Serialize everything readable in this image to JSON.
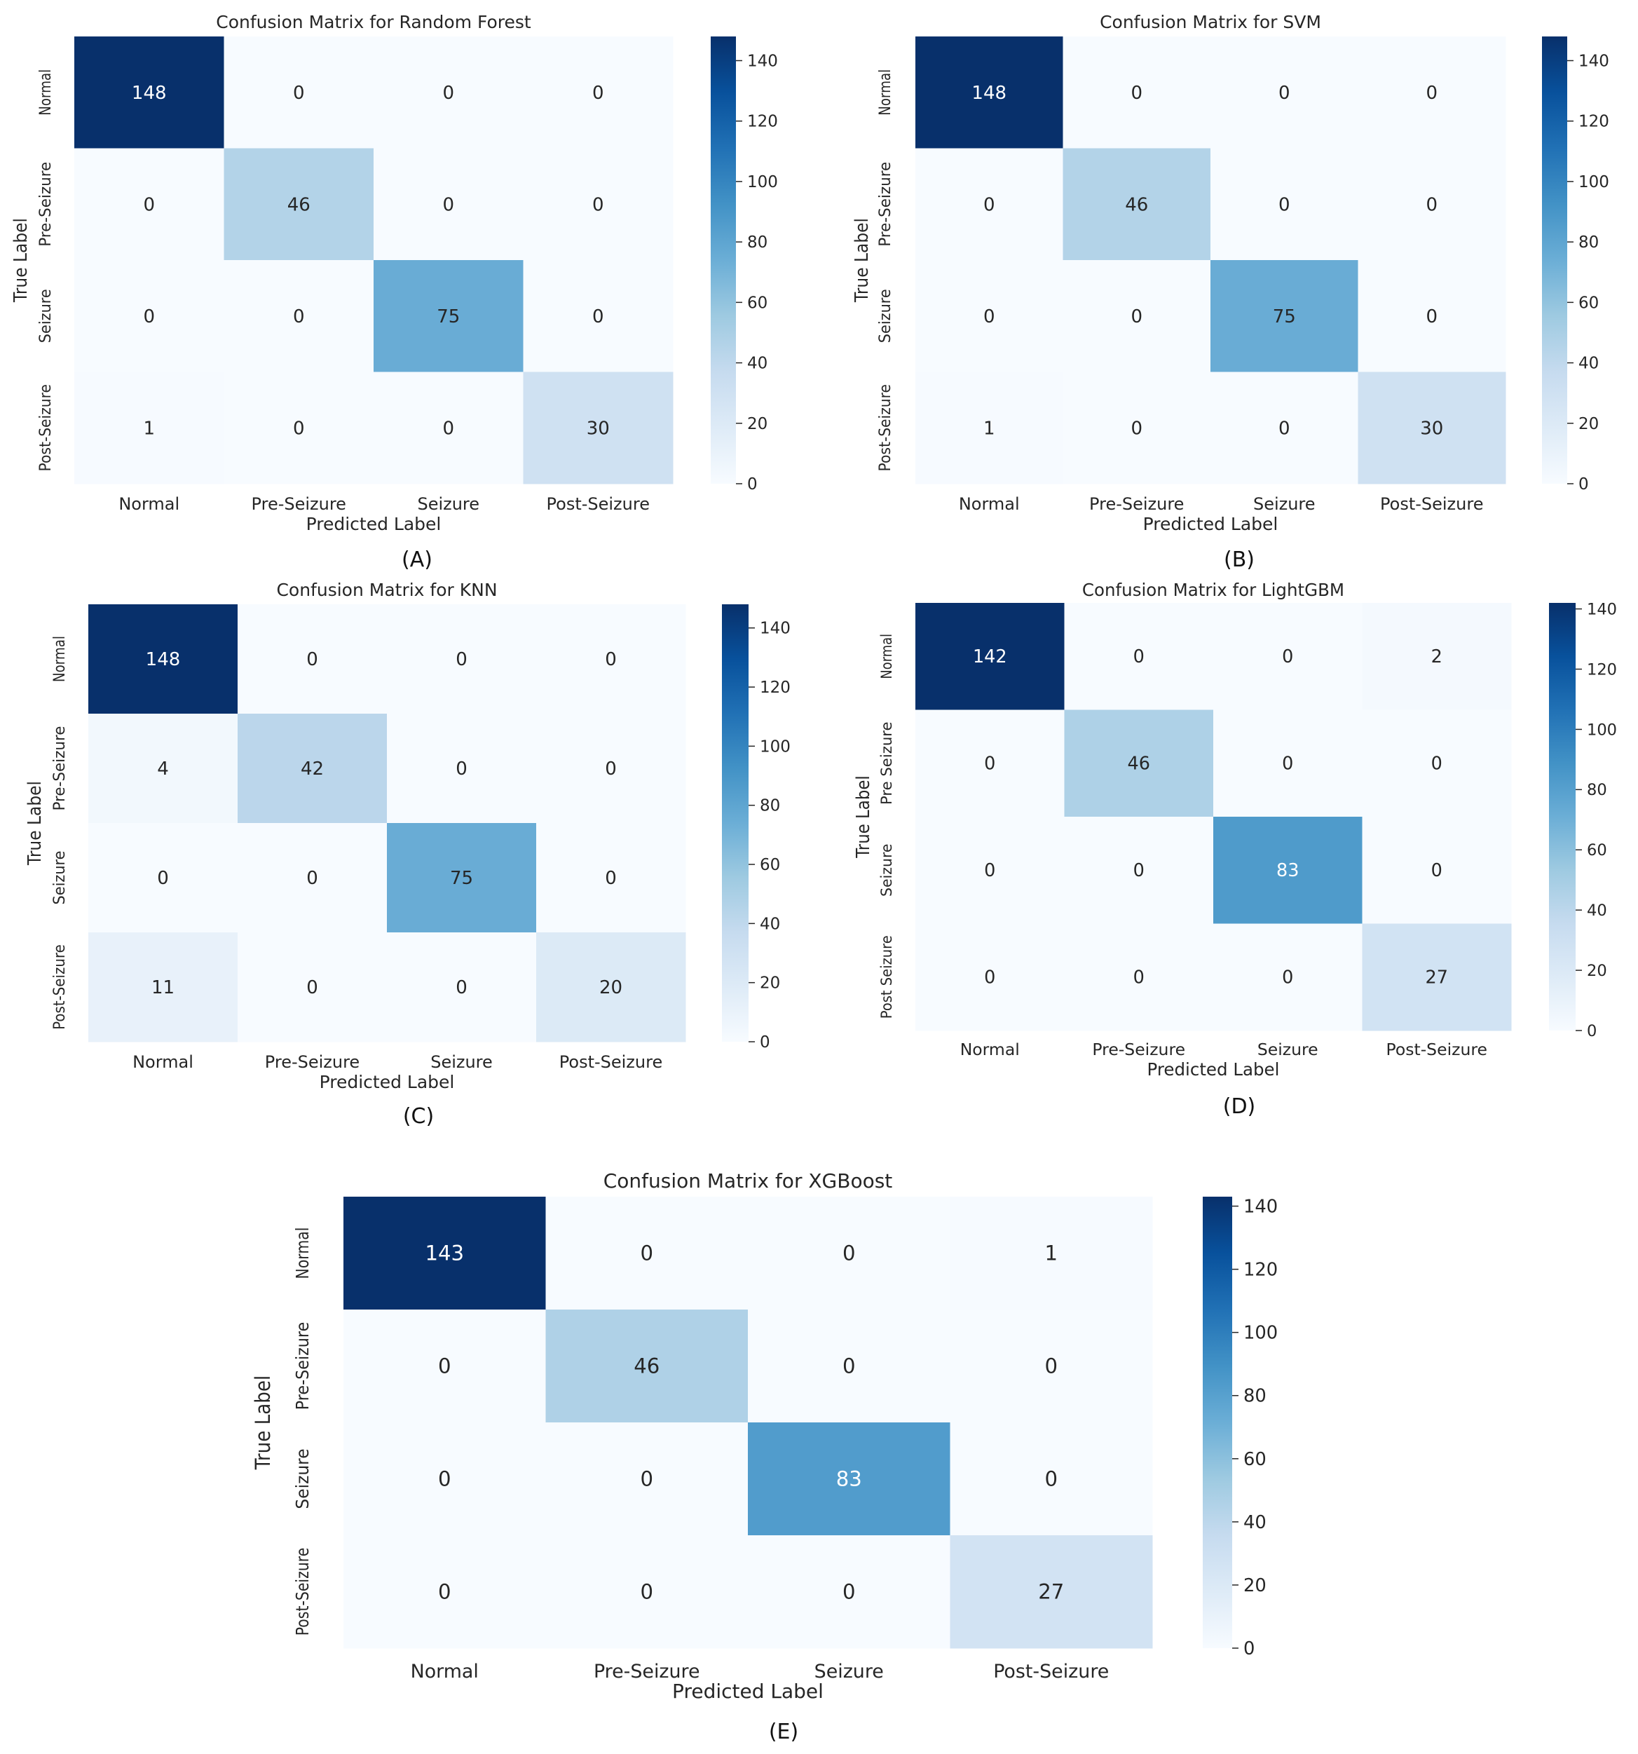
{
  "chart_data": [
    {
      "type": "heatmap",
      "title": "Confusion Matrix for Random Forest",
      "xlabel": "Predicted Label",
      "ylabel": "True Label",
      "panel_label": "(A)",
      "x_categories": [
        "Normal",
        "Pre-Seizure",
        "Seizure",
        "Post-Seizure"
      ],
      "y_categories": [
        "Normal",
        "Pre-Seizure",
        "Seizure",
        "Post-Seizure"
      ],
      "values": [
        [
          148,
          0,
          0,
          0
        ],
        [
          0,
          46,
          0,
          0
        ],
        [
          0,
          0,
          75,
          0
        ],
        [
          1,
          0,
          0,
          30
        ]
      ],
      "colorbar_ticks": [
        "0",
        "20",
        "40",
        "60",
        "80",
        "100",
        "120",
        "140"
      ],
      "colorbar_range": [
        0,
        148
      ],
      "colormap": "Blues"
    },
    {
      "type": "heatmap",
      "title": "Confusion Matrix for SVM",
      "xlabel": "Predicted Label",
      "ylabel": "True Label",
      "panel_label": "(B)",
      "x_categories": [
        "Normal",
        "Pre-Seizure",
        "Seizure",
        "Post-Seizure"
      ],
      "y_categories": [
        "Normal",
        "Pre-Seizure",
        "Seizure",
        "Post-Seizure"
      ],
      "values": [
        [
          148,
          0,
          0,
          0
        ],
        [
          0,
          46,
          0,
          0
        ],
        [
          0,
          0,
          75,
          0
        ],
        [
          1,
          0,
          0,
          30
        ]
      ],
      "colorbar_ticks": [
        "0",
        "20",
        "40",
        "60",
        "80",
        "100",
        "120",
        "140"
      ],
      "colorbar_range": [
        0,
        148
      ],
      "colormap": "Blues"
    },
    {
      "type": "heatmap",
      "title": "Confusion Matrix for KNN",
      "xlabel": "Predicted Label",
      "ylabel": "True Label",
      "panel_label": "(C)",
      "x_categories": [
        "Normal",
        "Pre-Seizure",
        "Seizure",
        "Post-Seizure"
      ],
      "y_categories": [
        "Normal",
        "Pre-Seizure",
        "Seizure",
        "Post-Seizure"
      ],
      "values": [
        [
          148,
          0,
          0,
          0
        ],
        [
          4,
          42,
          0,
          0
        ],
        [
          0,
          0,
          75,
          0
        ],
        [
          11,
          0,
          0,
          20
        ]
      ],
      "colorbar_ticks": [
        "0",
        "20",
        "40",
        "60",
        "80",
        "100",
        "120",
        "140"
      ],
      "colorbar_range": [
        0,
        148
      ],
      "colormap": "Blues"
    },
    {
      "type": "heatmap",
      "title": "Confusion Matrix for LightGBM",
      "xlabel": "Predicted Label",
      "ylabel": "True Label",
      "panel_label": "(D)",
      "x_categories": [
        "Normal",
        "Pre-Seizure",
        "Seizure",
        "Post-Seizure"
      ],
      "y_categories": [
        "Normal",
        "Pre Seizure",
        "Seizure",
        "Post Seizure"
      ],
      "values": [
        [
          142,
          0,
          0,
          2
        ],
        [
          0,
          46,
          0,
          0
        ],
        [
          0,
          0,
          83,
          0
        ],
        [
          0,
          0,
          0,
          27
        ]
      ],
      "colorbar_ticks": [
        "0",
        "20",
        "40",
        "60",
        "80",
        "100",
        "120",
        "140"
      ],
      "colorbar_range": [
        0,
        142
      ],
      "colormap": "Blues"
    },
    {
      "type": "heatmap",
      "title": "Confusion Matrix for XGBoost",
      "xlabel": "Predicted Label",
      "ylabel": "True Label",
      "panel_label": "(E)",
      "x_categories": [
        "Normal",
        "Pre-Seizure",
        "Seizure",
        "Post-Seizure"
      ],
      "y_categories": [
        "Normal",
        "Pre-Seizure",
        "Seizure",
        "Post-Seizure"
      ],
      "values": [
        [
          143,
          0,
          0,
          1
        ],
        [
          0,
          46,
          0,
          0
        ],
        [
          0,
          0,
          83,
          0
        ],
        [
          0,
          0,
          0,
          27
        ]
      ],
      "colorbar_ticks": [
        "0",
        "20",
        "40",
        "60",
        "80",
        "100",
        "120",
        "140"
      ],
      "colorbar_range": [
        0,
        143
      ],
      "colormap": "Blues"
    }
  ]
}
